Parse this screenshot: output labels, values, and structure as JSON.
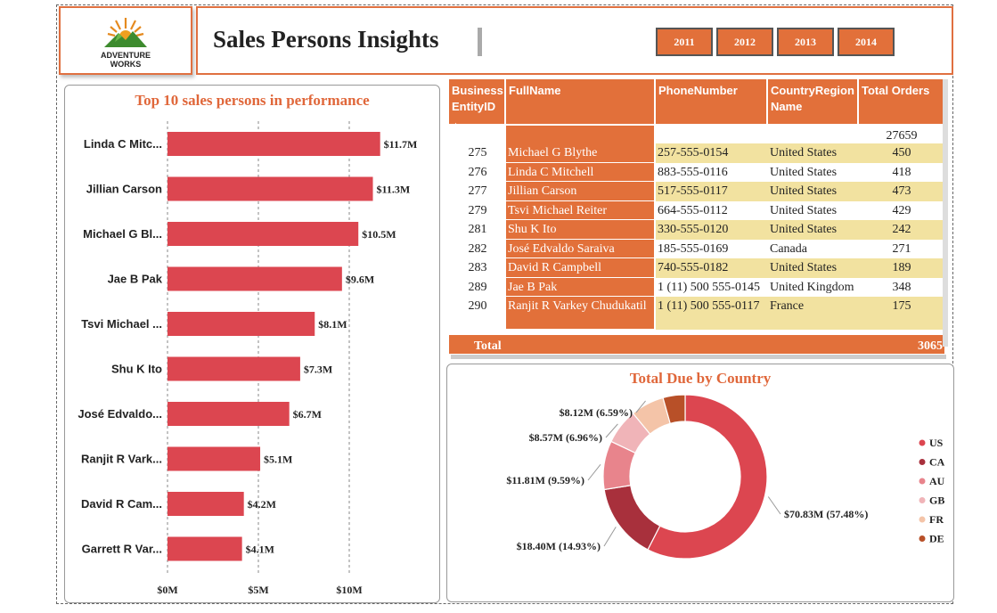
{
  "header": {
    "logo_line1": "ADVENTURE",
    "logo_line2": "WORKS",
    "title": "Sales Persons Insights",
    "years": [
      "2011",
      "2012",
      "2013",
      "2014"
    ]
  },
  "bar_chart": {
    "title": "Top 10 sales persons in performance"
  },
  "table": {
    "columns": [
      "Business EntityID",
      "FullName",
      "PhoneNumber",
      "CountryRegion Name",
      "Total Orders"
    ],
    "blank_row_orders": "27659",
    "rows": [
      {
        "id": "275",
        "name": "Michael G Blythe",
        "phone": "257-555-0154",
        "country": "United States",
        "orders": "450"
      },
      {
        "id": "276",
        "name": "Linda C Mitchell",
        "phone": "883-555-0116",
        "country": "United States",
        "orders": "418"
      },
      {
        "id": "277",
        "name": "Jillian Carson",
        "phone": "517-555-0117",
        "country": "United States",
        "orders": "473"
      },
      {
        "id": "279",
        "name": "Tsvi Michael Reiter",
        "phone": "664-555-0112",
        "country": "United States",
        "orders": "429"
      },
      {
        "id": "281",
        "name": "Shu K Ito",
        "phone": "330-555-0120",
        "country": "United States",
        "orders": "242"
      },
      {
        "id": "282",
        "name": "José Edvaldo Saraiva",
        "phone": "185-555-0169",
        "country": "Canada",
        "orders": "271"
      },
      {
        "id": "283",
        "name": "David R Campbell",
        "phone": "740-555-0182",
        "country": "United States",
        "orders": "189"
      },
      {
        "id": "289",
        "name": "Jae B Pak",
        "phone": "1 (11) 500 555-0145",
        "country": "United Kingdom",
        "orders": "348"
      },
      {
        "id": "290",
        "name": "Ranjit R Varkey Chudukatil",
        "phone": "1 (11) 500 555-0117",
        "country": "France",
        "orders": "175"
      }
    ],
    "total_label": "Total",
    "total_value": "3065"
  },
  "donut": {
    "title": "Total Due by Country"
  },
  "chart_data": [
    {
      "type": "bar",
      "orientation": "horizontal",
      "title": "Top 10 sales persons in performance",
      "categories": [
        "Linda C Mitc...",
        "Jillian Carson",
        "Michael G Bl...",
        "Jae B Pak",
        "Tsvi Michael ...",
        "Shu K Ito",
        "José Edvaldo...",
        "Ranjit R Vark...",
        "David R Cam...",
        "Garrett R Var..."
      ],
      "values": [
        11.7,
        11.3,
        10.5,
        9.6,
        8.1,
        7.3,
        6.7,
        5.1,
        4.2,
        4.1
      ],
      "data_labels": [
        "$11.7M",
        "$11.3M",
        "$10.5M",
        "$9.6M",
        "$8.1M",
        "$7.3M",
        "$6.7M",
        "$5.1M",
        "$4.2M",
        "$4.1M"
      ],
      "xlim": [
        0,
        12
      ],
      "xticks": [
        0,
        5,
        10
      ],
      "xtick_labels": [
        "$0M",
        "$5M",
        "$10M"
      ],
      "grid": true,
      "color": "#dc4650"
    },
    {
      "type": "pie",
      "variant": "donut",
      "title": "Total Due by Country",
      "categories": [
        "US",
        "CA",
        "AU",
        "GB",
        "FR",
        "DE"
      ],
      "values": [
        70.83,
        18.4,
        11.81,
        8.57,
        8.12,
        5.37
      ],
      "data_labels": [
        "$70.83M (57.48%)",
        "$18.40M (14.93%)",
        "$11.81M (9.59%)",
        "$8.57M (6.96%)",
        "$8.12M (6.59%)",
        ""
      ],
      "colors": [
        "#dc4650",
        "#a8303c",
        "#e8848c",
        "#f0b4b8",
        "#f4c4a8",
        "#b85028"
      ],
      "legend": "right"
    }
  ]
}
